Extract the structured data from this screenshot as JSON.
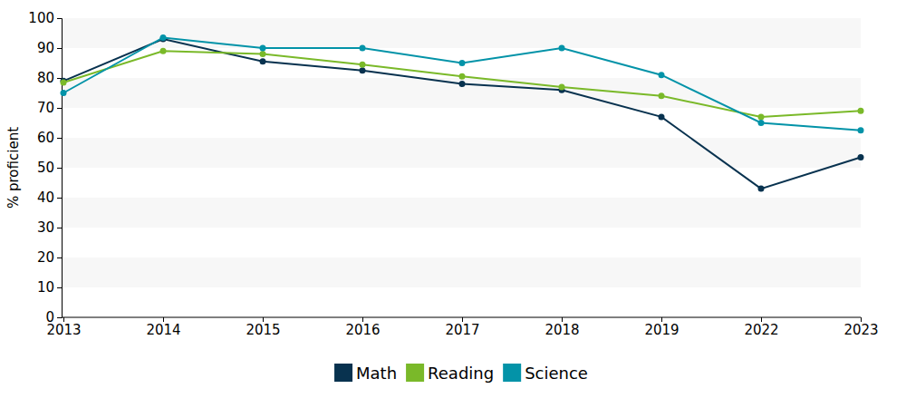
{
  "chart_data": {
    "type": "line",
    "y_label": "% proficient",
    "categories": [
      "2013",
      "2014",
      "2015",
      "2016",
      "2017",
      "2018",
      "2019",
      "2022",
      "2023"
    ],
    "series": [
      {
        "name": "Math",
        "color": "#08324f",
        "values": [
          79,
          93,
          85.5,
          82.5,
          78,
          76,
          67,
          43,
          53.5
        ]
      },
      {
        "name": "Reading",
        "color": "#7ab929",
        "values": [
          78.5,
          89,
          88,
          84.5,
          80.5,
          77,
          74,
          67,
          69
        ]
      },
      {
        "name": "Science",
        "color": "#0393a8",
        "values": [
          75,
          93.5,
          90,
          90,
          85,
          90,
          81,
          65,
          62.5
        ]
      }
    ],
    "ylim": [
      0,
      100
    ],
    "yticks": [
      0,
      10,
      20,
      30,
      40,
      50,
      60,
      70,
      80,
      90,
      100
    ],
    "grid": true,
    "legend": "bottom",
    "marker": "circle"
  }
}
